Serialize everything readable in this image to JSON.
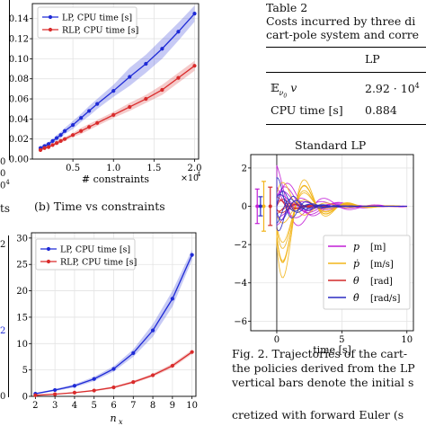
{
  "colors": {
    "lp": "#1f2bd6",
    "rlp": "#d92b2b",
    "p": "#c21fd6",
    "pdot": "#f2b51a",
    "theta": "#d22a2a",
    "thetadot": "#2b2bc2"
  },
  "fragments": {
    "left_top_yticks": [
      "0",
      "0"
    ],
    "left_top_x_suffix": "0",
    "left_top_x_exp": "4",
    "left_caption_tail": "ts",
    "left_bottom_yticks": [
      "2",
      "0"
    ],
    "left_bottom_ytick_mid": "2"
  },
  "plot_b": {
    "caption": "(b) Time vs constraints",
    "legend": [
      "LP, CPU time [s]",
      "RLP, CPU time [s]"
    ]
  },
  "plot_c": {
    "legend": [
      "LP, CPU time [s]",
      "RLP, CPU time [s]"
    ]
  },
  "table": {
    "label": "Table 2",
    "caption_lines": [
      "Costs incurred by three di",
      "cart-pole system and corre"
    ],
    "col_header": "LP",
    "rows": [
      {
        "label": "𝔼",
        "sub": "ν",
        "sub2": "0",
        "var": " v",
        "value": "2.92 · 10",
        "exp": "4"
      },
      {
        "label": "CPU time [s]",
        "value": "0.884"
      }
    ]
  },
  "plot_d": {
    "title": "Standard LP",
    "legend": [
      {
        "sym": "p",
        "unit": "[m]"
      },
      {
        "sym": "ṗ",
        "unit": "[m/s]"
      },
      {
        "sym": "θ",
        "unit": "[rad]"
      },
      {
        "sym": "θ̇",
        "unit": "[rad/s]"
      }
    ]
  },
  "figure_caption": {
    "lines": [
      "Fig. 2.  Trajectories of the cart-",
      "the policies derived from the LP",
      "vertical bars denote the initial s"
    ]
  },
  "body_text": "cretized with forward Euler (s",
  "chart_data": [
    {
      "type": "line",
      "title": "",
      "xlabel": "# constraints",
      "ylabel": "",
      "x_multiplier": "×10^4",
      "xlim": [
        0,
        2.05
      ],
      "ylim": [
        0,
        0.155
      ],
      "xticks": [
        0.5,
        1.0,
        1.5,
        2.0
      ],
      "xtick_labels": [
        "0.5",
        "1.0",
        "1.5",
        "2.0"
      ],
      "yticks": [
        0,
        0.02,
        0.04,
        0.06,
        0.08,
        0.1,
        0.12,
        0.14
      ],
      "ytick_labels": [
        "0.00",
        "0.02",
        "0.04",
        "0.06",
        "0.08",
        "0.10",
        "0.12",
        "0.14"
      ],
      "grid": true,
      "legend": "top-left",
      "series": [
        {
          "name": "LP, CPU time [s]",
          "color": "#1f2bd6",
          "x": [
            0.1,
            0.15,
            0.2,
            0.25,
            0.3,
            0.35,
            0.4,
            0.5,
            0.6,
            0.7,
            0.8,
            1.0,
            1.2,
            1.4,
            1.6,
            1.8,
            2.0
          ],
          "y": [
            0.011,
            0.013,
            0.015,
            0.018,
            0.021,
            0.024,
            0.028,
            0.034,
            0.041,
            0.048,
            0.055,
            0.068,
            0.082,
            0.095,
            0.11,
            0.127,
            0.145
          ],
          "band": [
            0.002,
            0.002,
            0.002,
            0.002,
            0.003,
            0.003,
            0.003,
            0.004,
            0.004,
            0.005,
            0.005,
            0.006,
            0.009,
            0.009,
            0.01,
            0.009,
            0.008
          ]
        },
        {
          "name": "RLP, CPU time [s]",
          "color": "#d92b2b",
          "x": [
            0.1,
            0.15,
            0.2,
            0.25,
            0.3,
            0.35,
            0.4,
            0.5,
            0.6,
            0.7,
            0.8,
            1.0,
            1.2,
            1.4,
            1.6,
            1.8,
            2.0
          ],
          "y": [
            0.009,
            0.011,
            0.012,
            0.014,
            0.016,
            0.018,
            0.02,
            0.024,
            0.028,
            0.032,
            0.036,
            0.044,
            0.052,
            0.06,
            0.069,
            0.081,
            0.093
          ],
          "band": [
            0.001,
            0.001,
            0.001,
            0.001,
            0.002,
            0.002,
            0.002,
            0.002,
            0.003,
            0.003,
            0.003,
            0.003,
            0.004,
            0.004,
            0.005,
            0.005,
            0.005
          ]
        }
      ]
    },
    {
      "type": "line",
      "title": "",
      "xlabel": "n_x",
      "ylabel": "",
      "xlim": [
        1.8,
        10.2
      ],
      "ylim": [
        0,
        31
      ],
      "xticks": [
        2,
        3,
        4,
        5,
        6,
        7,
        8,
        9,
        10
      ],
      "xtick_labels": [
        "2",
        "3",
        "4",
        "5",
        "6",
        "7",
        "8",
        "9",
        "10"
      ],
      "yticks": [
        0,
        5,
        10,
        15,
        20,
        25,
        30
      ],
      "ytick_labels": [
        "0",
        "5",
        "10",
        "15",
        "20",
        "25",
        "30"
      ],
      "grid": true,
      "legend": "top-left",
      "series": [
        {
          "name": "LP, CPU time [s]",
          "color": "#1f2bd6",
          "x": [
            2,
            3,
            4,
            5,
            6,
            7,
            8,
            9,
            10
          ],
          "y": [
            0.5,
            1.2,
            2.0,
            3.3,
            5.2,
            8.2,
            12.5,
            18.5,
            26.8
          ],
          "band": [
            0.1,
            0.2,
            0.3,
            0.4,
            0.5,
            0.7,
            1.2,
            1.5,
            1.0
          ]
        },
        {
          "name": "RLP, CPU time [s]",
          "color": "#d92b2b",
          "x": [
            2,
            3,
            4,
            5,
            6,
            7,
            8,
            9,
            10
          ],
          "y": [
            0.2,
            0.4,
            0.7,
            1.1,
            1.7,
            2.7,
            4.0,
            5.8,
            8.4
          ],
          "band": [
            0.05,
            0.08,
            0.1,
            0.15,
            0.2,
            0.25,
            0.3,
            0.4,
            0.4
          ]
        }
      ]
    },
    {
      "type": "line",
      "title": "Standard LP",
      "xlabel": "time [s]",
      "ylabel": "",
      "xlim": [
        -2,
        10.5
      ],
      "ylim": [
        -6.5,
        2.7
      ],
      "xticks": [
        0,
        5,
        10
      ],
      "xtick_labels": [
        "0",
        "5",
        "10"
      ],
      "yticks": [
        2,
        0,
        -2,
        -4,
        -6
      ],
      "ytick_labels": [
        "2",
        "0",
        "−2",
        "−4",
        "−6"
      ],
      "grid": true,
      "legend": "lower-right",
      "series": [
        {
          "name": "p [m]",
          "color": "#c21fd6"
        },
        {
          "name": "ṗ [m/s]",
          "color": "#f2b51a"
        },
        {
          "name": "θ [rad]",
          "color": "#d22a2a"
        },
        {
          "name": "θ̇ [rad/s]",
          "color": "#2b2bc2"
        }
      ]
    }
  ]
}
